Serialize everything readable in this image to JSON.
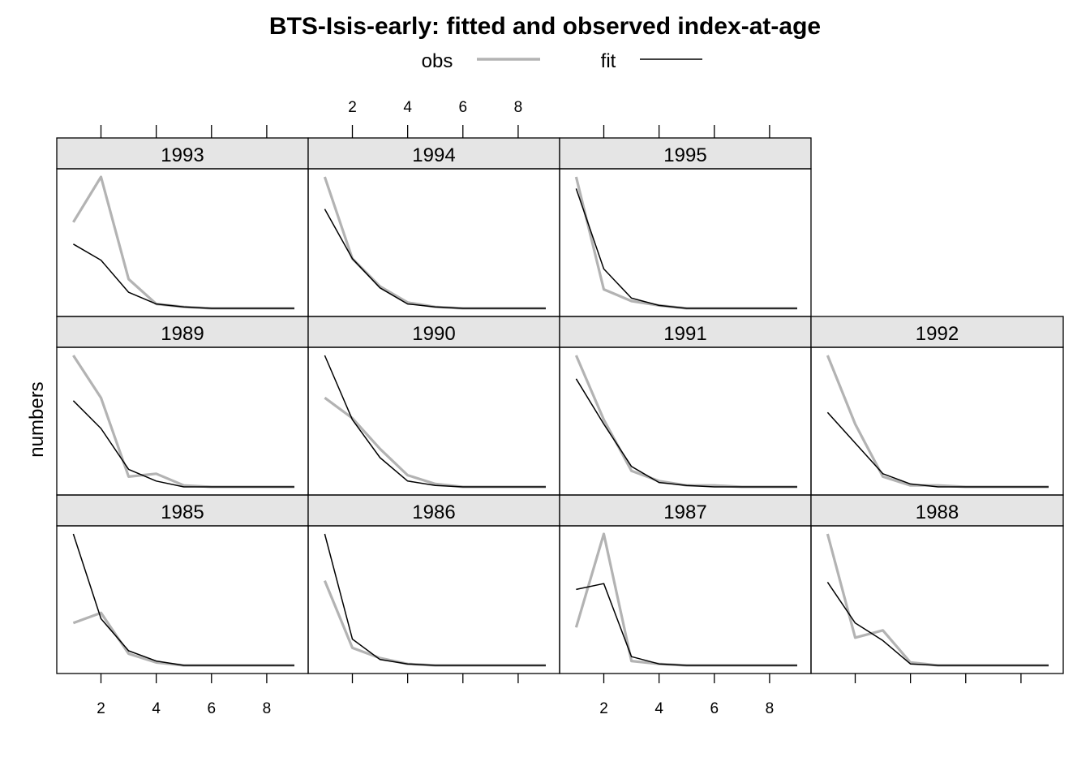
{
  "chart_data": {
    "type": "line",
    "title": "BTS-Isis-early: fitted and observed index-at-age",
    "ylabel": "numbers",
    "xlabel": "",
    "x": [
      1,
      2,
      3,
      4,
      5,
      6,
      7,
      8,
      9
    ],
    "x_ticks": [
      "2",
      "4",
      "6",
      "8"
    ],
    "xlim": [
      0.4,
      9.5
    ],
    "legend": {
      "placement": "top",
      "items": [
        {
          "name": "obs",
          "color": "#b3b3b3"
        },
        {
          "name": "fit",
          "color": "#000000"
        }
      ]
    },
    "layout": {
      "columns": 4,
      "rows": 3
    },
    "panels": [
      {
        "year": "1985",
        "obs": [
          0.29,
          0.36,
          0.08,
          0.02,
          0.0,
          0.0,
          0.0,
          0.0,
          0.0
        ],
        "fit": [
          0.9,
          0.32,
          0.1,
          0.03,
          0.0,
          0.0,
          0.0,
          0.0,
          0.0
        ]
      },
      {
        "year": "1986",
        "obs": [
          0.58,
          0.12,
          0.05,
          0.01,
          0.0,
          0.0,
          0.0,
          0.0,
          0.0
        ],
        "fit": [
          0.9,
          0.18,
          0.04,
          0.01,
          0.0,
          0.0,
          0.0,
          0.0,
          0.0
        ]
      },
      {
        "year": "1987",
        "obs": [
          0.26,
          0.9,
          0.03,
          0.01,
          0.0,
          0.0,
          0.0,
          0.0,
          0.0
        ],
        "fit": [
          0.52,
          0.56,
          0.06,
          0.01,
          0.0,
          0.0,
          0.0,
          0.0,
          0.0
        ]
      },
      {
        "year": "1988",
        "obs": [
          0.9,
          0.19,
          0.24,
          0.02,
          0.0,
          0.0,
          0.0,
          0.0,
          0.0
        ],
        "fit": [
          0.57,
          0.29,
          0.17,
          0.01,
          0.0,
          0.0,
          0.0,
          0.0,
          0.0
        ]
      },
      {
        "year": "1989",
        "obs": [
          0.9,
          0.61,
          0.07,
          0.09,
          0.01,
          0.0,
          0.0,
          0.0,
          0.0
        ],
        "fit": [
          0.59,
          0.4,
          0.12,
          0.04,
          0.0,
          0.0,
          0.0,
          0.0,
          0.0
        ]
      },
      {
        "year": "1990",
        "obs": [
          0.61,
          0.47,
          0.26,
          0.08,
          0.02,
          0.0,
          0.0,
          0.0,
          0.0
        ],
        "fit": [
          0.9,
          0.46,
          0.2,
          0.04,
          0.01,
          0.0,
          0.0,
          0.0,
          0.0
        ]
      },
      {
        "year": "1991",
        "obs": [
          0.9,
          0.46,
          0.11,
          0.04,
          0.01,
          0.01,
          0.0,
          0.0,
          0.0
        ],
        "fit": [
          0.74,
          0.43,
          0.14,
          0.03,
          0.01,
          0.0,
          0.0,
          0.0,
          0.0
        ]
      },
      {
        "year": "1992",
        "obs": [
          0.9,
          0.43,
          0.07,
          0.01,
          0.01,
          0.0,
          0.0,
          0.0,
          0.0
        ],
        "fit": [
          0.51,
          0.3,
          0.09,
          0.02,
          0.0,
          0.0,
          0.0,
          0.0,
          0.0
        ]
      },
      {
        "year": "1993",
        "obs": [
          0.59,
          0.9,
          0.2,
          0.03,
          0.01,
          0.0,
          0.0,
          0.0,
          0.0
        ],
        "fit": [
          0.44,
          0.33,
          0.11,
          0.03,
          0.01,
          0.0,
          0.0,
          0.0,
          0.0
        ]
      },
      {
        "year": "1994",
        "obs": [
          0.9,
          0.34,
          0.15,
          0.04,
          0.01,
          0.0,
          0.0,
          0.0,
          0.0
        ],
        "fit": [
          0.68,
          0.34,
          0.14,
          0.03,
          0.01,
          0.0,
          0.0,
          0.0,
          0.0
        ]
      },
      {
        "year": "1995",
        "obs": [
          0.9,
          0.13,
          0.05,
          0.02,
          0.0,
          0.0,
          0.0,
          0.0,
          0.0
        ],
        "fit": [
          0.82,
          0.27,
          0.07,
          0.02,
          0.0,
          0.0,
          0.0,
          0.0,
          0.0
        ]
      }
    ]
  }
}
